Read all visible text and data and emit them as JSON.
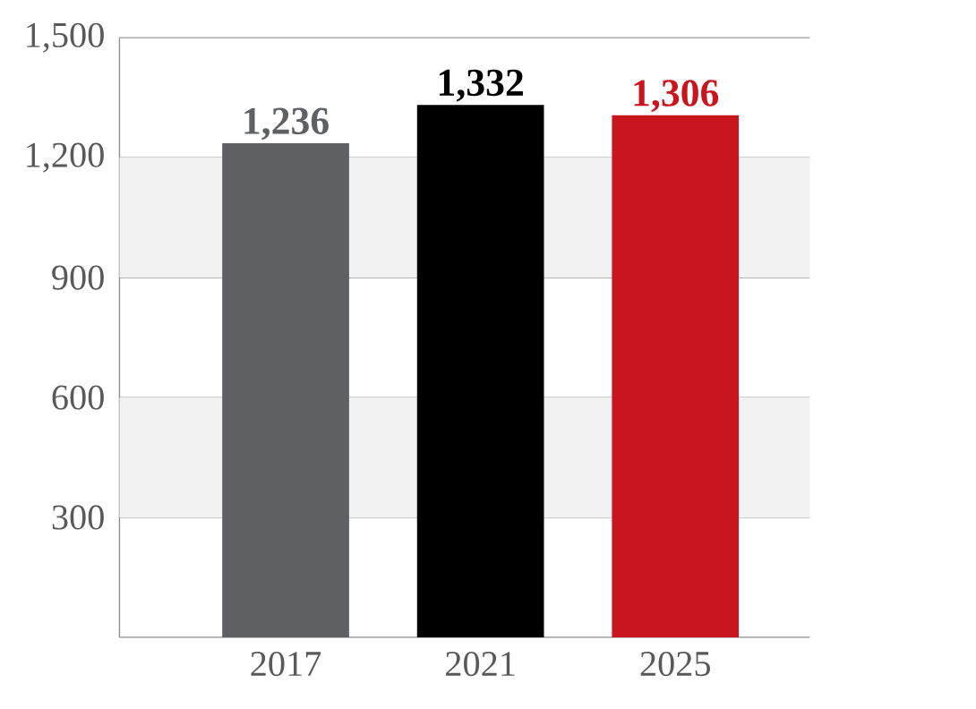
{
  "chart_data": {
    "type": "bar",
    "categories": [
      "2017",
      "2021",
      "2025"
    ],
    "values": [
      1236,
      1332,
      1306
    ],
    "colors": [
      "#5f6062",
      "#000000",
      "#c8161e"
    ],
    "value_labels": [
      "1,236",
      "1,332",
      "1,306"
    ],
    "ylim": [
      0,
      1500
    ],
    "yticks": [
      {
        "value": 300,
        "label": "300"
      },
      {
        "value": 600,
        "label": "600"
      },
      {
        "value": 900,
        "label": "900"
      },
      {
        "value": 1200,
        "label": "1,200"
      },
      {
        "value": 1500,
        "label": "1,500"
      }
    ],
    "grid": "y",
    "bands": [
      {
        "axis": "y",
        "from": 900,
        "to": 1200,
        "color": "#f2f2f2"
      },
      {
        "axis": "y",
        "from": 300,
        "to": 600,
        "color": "#f2f2f2"
      }
    ]
  }
}
